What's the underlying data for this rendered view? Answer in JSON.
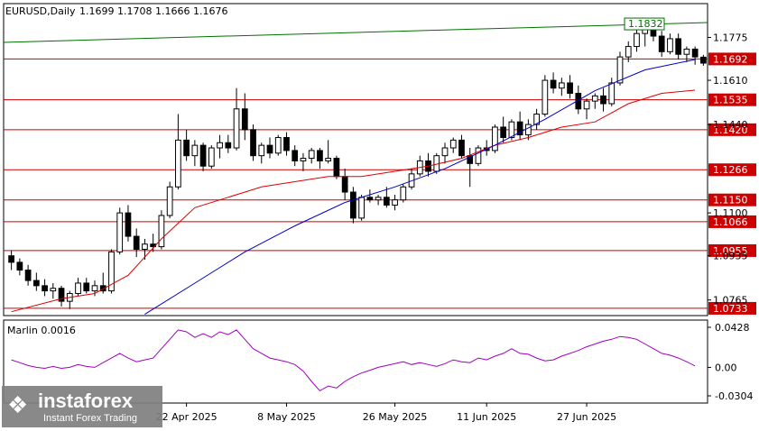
{
  "header": {
    "symbol": "EURUSD,Daily",
    "ohlc": "1.1699 1.1708 1.1666 1.1676"
  },
  "colors": {
    "bull": "#ffffff",
    "bear": "#000000",
    "level": "#cc0000",
    "ma_fast": "#dd0000",
    "ma_slow": "#0000cc",
    "trend": "#007000",
    "marlin": "#a000c0",
    "grid": "#cfcfcf"
  },
  "chart_data": [
    {
      "type": "candlestick",
      "title": "EURUSD,Daily",
      "ylim": [
        1.0705,
        1.1905
      ],
      "price_ticks": [
        "1.1775",
        "1.1610",
        "1.1440",
        "1.1100",
        "1.0935",
        "1.0765"
      ],
      "x_tick_labels": [
        "22 Apr 2025",
        "8 May 2025",
        "26 May 2025",
        "11 Jun 2025",
        "27 Jun 2025"
      ],
      "x_tick_index": [
        21,
        33,
        46,
        57,
        69
      ],
      "horizontal_levels": [
        1.1692,
        1.1535,
        1.142,
        1.1266,
        1.115,
        1.1066,
        1.0955,
        1.0733
      ],
      "trend_line": {
        "label": "1.1832",
        "y_start": 1.1756,
        "y_end": 1.1832
      },
      "ohlc": [
        [
          1.0935,
          1.0955,
          1.088,
          1.091
        ],
        [
          1.091,
          1.0925,
          1.086,
          1.088
        ],
        [
          1.088,
          1.09,
          1.082,
          1.084
        ],
        [
          1.084,
          1.087,
          1.08,
          1.082
        ],
        [
          1.082,
          1.0845,
          1.078,
          1.08
        ],
        [
          1.08,
          1.083,
          1.077,
          1.081
        ],
        [
          1.081,
          1.082,
          1.074,
          1.076
        ],
        [
          1.076,
          1.08,
          1.073,
          1.079
        ],
        [
          1.079,
          1.085,
          1.078,
          1.083
        ],
        [
          1.083,
          1.085,
          1.079,
          1.08
        ],
        [
          1.08,
          1.084,
          1.078,
          1.082
        ],
        [
          1.082,
          1.087,
          1.079,
          1.08
        ],
        [
          1.08,
          1.096,
          1.079,
          1.095
        ],
        [
          1.095,
          1.112,
          1.094,
          1.11
        ],
        [
          1.11,
          1.113,
          1.099,
          1.101
        ],
        [
          1.101,
          1.104,
          1.093,
          1.096
        ],
        [
          1.096,
          1.1,
          1.092,
          1.098
        ],
        [
          1.098,
          1.102,
          1.095,
          1.097
        ],
        [
          1.097,
          1.111,
          1.096,
          1.109
        ],
        [
          1.109,
          1.122,
          1.108,
          1.12
        ],
        [
          1.12,
          1.148,
          1.119,
          1.138
        ],
        [
          1.138,
          1.142,
          1.13,
          1.132
        ],
        [
          1.132,
          1.138,
          1.128,
          1.136
        ],
        [
          1.136,
          1.137,
          1.126,
          1.128
        ],
        [
          1.128,
          1.136,
          1.127,
          1.135
        ],
        [
          1.135,
          1.14,
          1.131,
          1.137
        ],
        [
          1.137,
          1.14,
          1.133,
          1.135
        ],
        [
          1.135,
          1.158,
          1.134,
          1.15
        ],
        [
          1.15,
          1.156,
          1.138,
          1.142
        ],
        [
          1.142,
          1.144,
          1.13,
          1.132
        ],
        [
          1.132,
          1.137,
          1.129,
          1.136
        ],
        [
          1.136,
          1.139,
          1.131,
          1.133
        ],
        [
          1.133,
          1.14,
          1.132,
          1.139
        ],
        [
          1.139,
          1.141,
          1.132,
          1.134
        ],
        [
          1.134,
          1.136,
          1.128,
          1.13
        ],
        [
          1.13,
          1.133,
          1.126,
          1.131
        ],
        [
          1.131,
          1.135,
          1.129,
          1.134
        ],
        [
          1.134,
          1.135,
          1.127,
          1.13
        ],
        [
          1.13,
          1.138,
          1.129,
          1.131
        ],
        [
          1.131,
          1.132,
          1.123,
          1.124
        ],
        [
          1.124,
          1.127,
          1.115,
          1.118
        ],
        [
          1.118,
          1.12,
          1.106,
          1.108
        ],
        [
          1.108,
          1.117,
          1.107,
          1.116
        ],
        [
          1.116,
          1.119,
          1.114,
          1.115
        ],
        [
          1.115,
          1.117,
          1.113,
          1.116
        ],
        [
          1.116,
          1.12,
          1.112,
          1.113
        ],
        [
          1.113,
          1.117,
          1.111,
          1.115
        ],
        [
          1.115,
          1.121,
          1.114,
          1.12
        ],
        [
          1.12,
          1.127,
          1.119,
          1.125
        ],
        [
          1.125,
          1.132,
          1.124,
          1.13
        ],
        [
          1.13,
          1.133,
          1.124,
          1.126
        ],
        [
          1.126,
          1.133,
          1.125,
          1.132
        ],
        [
          1.132,
          1.137,
          1.129,
          1.135
        ],
        [
          1.135,
          1.139,
          1.133,
          1.138
        ],
        [
          1.138,
          1.14,
          1.131,
          1.132
        ],
        [
          1.132,
          1.135,
          1.12,
          1.129
        ],
        [
          1.129,
          1.136,
          1.128,
          1.135
        ],
        [
          1.135,
          1.138,
          1.132,
          1.134
        ],
        [
          1.134,
          1.144,
          1.133,
          1.143
        ],
        [
          1.143,
          1.147,
          1.137,
          1.139
        ],
        [
          1.139,
          1.146,
          1.138,
          1.145
        ],
        [
          1.145,
          1.149,
          1.138,
          1.14
        ],
        [
          1.14,
          1.146,
          1.138,
          1.144
        ],
        [
          1.144,
          1.15,
          1.142,
          1.148
        ],
        [
          1.148,
          1.163,
          1.147,
          1.161
        ],
        [
          1.161,
          1.164,
          1.156,
          1.158
        ],
        [
          1.158,
          1.162,
          1.155,
          1.16
        ],
        [
          1.16,
          1.163,
          1.154,
          1.156
        ],
        [
          1.156,
          1.159,
          1.148,
          1.15
        ],
        [
          1.15,
          1.154,
          1.146,
          1.153
        ],
        [
          1.153,
          1.156,
          1.15,
          1.155
        ],
        [
          1.155,
          1.158,
          1.149,
          1.152
        ],
        [
          1.152,
          1.162,
          1.151,
          1.16
        ],
        [
          1.16,
          1.172,
          1.159,
          1.17
        ],
        [
          1.17,
          1.176,
          1.168,
          1.174
        ],
        [
          1.174,
          1.181,
          1.172,
          1.179
        ],
        [
          1.179,
          1.184,
          1.174,
          1.182
        ],
        [
          1.182,
          1.183,
          1.176,
          1.178
        ],
        [
          1.178,
          1.18,
          1.17,
          1.172
        ],
        [
          1.172,
          1.179,
          1.171,
          1.177
        ],
        [
          1.177,
          1.179,
          1.169,
          1.171
        ],
        [
          1.171,
          1.174,
          1.168,
          1.173
        ],
        [
          1.173,
          1.174,
          1.167,
          1.17
        ],
        [
          1.1699,
          1.1708,
          1.1666,
          1.1676
        ]
      ],
      "ma_fast": [
        [
          0,
          1.072
        ],
        [
          6,
          1.077
        ],
        [
          10,
          1.079
        ],
        [
          14,
          1.086
        ],
        [
          18,
          1.1
        ],
        [
          22,
          1.112
        ],
        [
          26,
          1.116
        ],
        [
          30,
          1.12
        ],
        [
          34,
          1.122
        ],
        [
          38,
          1.124
        ],
        [
          42,
          1.124
        ],
        [
          46,
          1.126
        ],
        [
          50,
          1.128
        ],
        [
          54,
          1.131
        ],
        [
          58,
          1.136
        ],
        [
          62,
          1.139
        ],
        [
          66,
          1.143
        ],
        [
          70,
          1.145
        ],
        [
          74,
          1.152
        ],
        [
          78,
          1.156
        ],
        [
          82,
          1.1572
        ]
      ],
      "ma_slow": [
        [
          16,
          1.071
        ],
        [
          22,
          1.083
        ],
        [
          28,
          1.095
        ],
        [
          34,
          1.105
        ],
        [
          40,
          1.114
        ],
        [
          46,
          1.12
        ],
        [
          52,
          1.127
        ],
        [
          58,
          1.136
        ],
        [
          64,
          1.146
        ],
        [
          70,
          1.157
        ],
        [
          76,
          1.165
        ],
        [
          82,
          1.169
        ]
      ]
    },
    {
      "type": "line",
      "title": "Marlin 0.0016",
      "ylim": [
        -0.0304,
        0.0428
      ],
      "y_ticks": [
        "0.0428",
        "0.00",
        "-0.0304"
      ],
      "series": [
        {
          "name": "Marlin",
          "values": [
            0.008,
            0.005,
            0.002,
            0.0,
            -0.001,
            0.001,
            -0.001,
            0.0,
            0.003,
            0.001,
            0.0,
            0.005,
            0.01,
            0.015,
            0.01,
            0.006,
            0.008,
            0.01,
            0.02,
            0.03,
            0.04,
            0.038,
            0.032,
            0.036,
            0.032,
            0.038,
            0.035,
            0.04,
            0.03,
            0.02,
            0.015,
            0.01,
            0.008,
            0.006,
            0.003,
            -0.004,
            -0.015,
            -0.025,
            -0.02,
            -0.022,
            -0.015,
            -0.01,
            -0.006,
            -0.003,
            0.0,
            0.002,
            0.004,
            0.006,
            0.003,
            0.005,
            0.003,
            0.001,
            0.004,
            0.008,
            0.006,
            0.005,
            0.01,
            0.008,
            0.012,
            0.015,
            0.02,
            0.015,
            0.014,
            0.01,
            0.007,
            0.008,
            0.012,
            0.015,
            0.018,
            0.022,
            0.025,
            0.028,
            0.03,
            0.033,
            0.032,
            0.03,
            0.025,
            0.02,
            0.015,
            0.013,
            0.01,
            0.006,
            0.0016
          ]
        }
      ]
    }
  ],
  "watermark": {
    "brand": "instaforex",
    "tagline": "Instant Forex Trading",
    "mark": "❖"
  }
}
